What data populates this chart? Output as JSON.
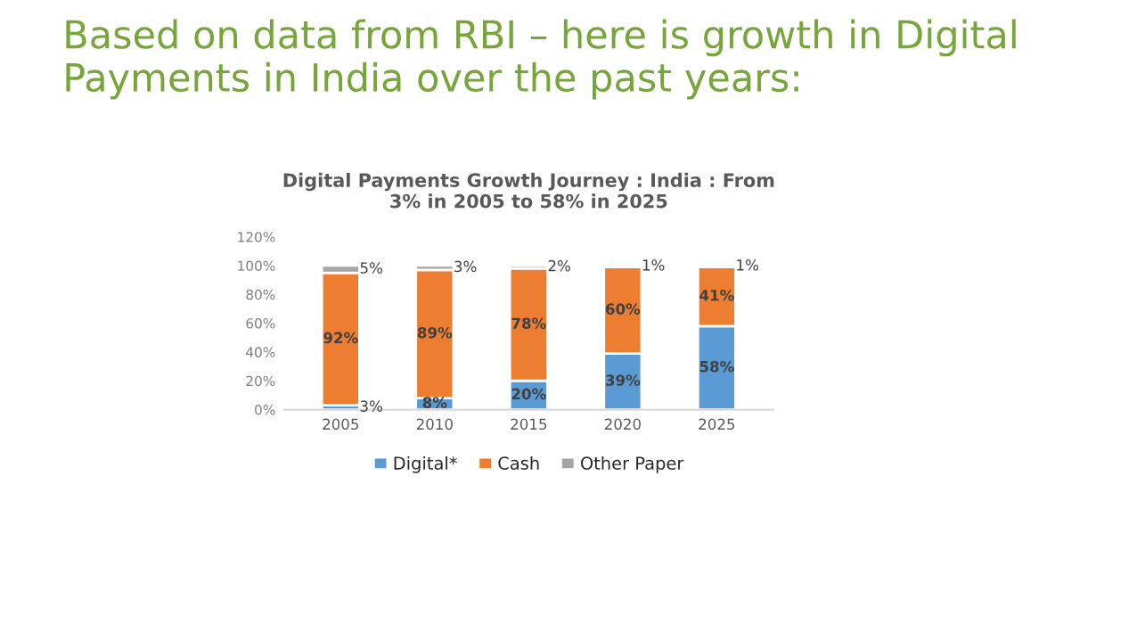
{
  "chart_data": {
    "type": "bar",
    "title": "Based on data from RBI – here is growth in Digital Payments in India over the past years:",
    "subtitle": "Digital Payments Growth Journey : India : From\n3% in 2005 to 58% in 2025",
    "categories": [
      "2005",
      "2010",
      "2015",
      "2020",
      "2025"
    ],
    "series": [
      {
        "name": "Digital*",
        "color": "#5b9bd5",
        "values": [
          3,
          8,
          20,
          39,
          58
        ],
        "value_labels": [
          "3%",
          "8%",
          "20%",
          "39%",
          "58%"
        ]
      },
      {
        "name": "Cash",
        "color": "#ed7d31",
        "values": [
          92,
          89,
          78,
          60,
          41
        ],
        "value_labels": [
          "92%",
          "89%",
          "78%",
          "60%",
          "41%"
        ]
      },
      {
        "name": "Other Paper",
        "color": "#a5a5a5",
        "values": [
          5,
          3,
          2,
          1,
          1
        ],
        "value_labels": [
          "5%",
          "3%",
          "2%",
          "1%",
          "1%"
        ]
      }
    ],
    "stacked": true,
    "grid": false,
    "legend": "bottom",
    "ylim": [
      0,
      120
    ],
    "yticks": [
      {
        "value": 0,
        "label": "0%"
      },
      {
        "value": 20,
        "label": "20%"
      },
      {
        "value": 40,
        "label": "40%"
      },
      {
        "value": 60,
        "label": "60%"
      },
      {
        "value": 80,
        "label": "80%"
      },
      {
        "value": 100,
        "label": "100%"
      },
      {
        "value": 120,
        "label": "120%"
      }
    ]
  }
}
